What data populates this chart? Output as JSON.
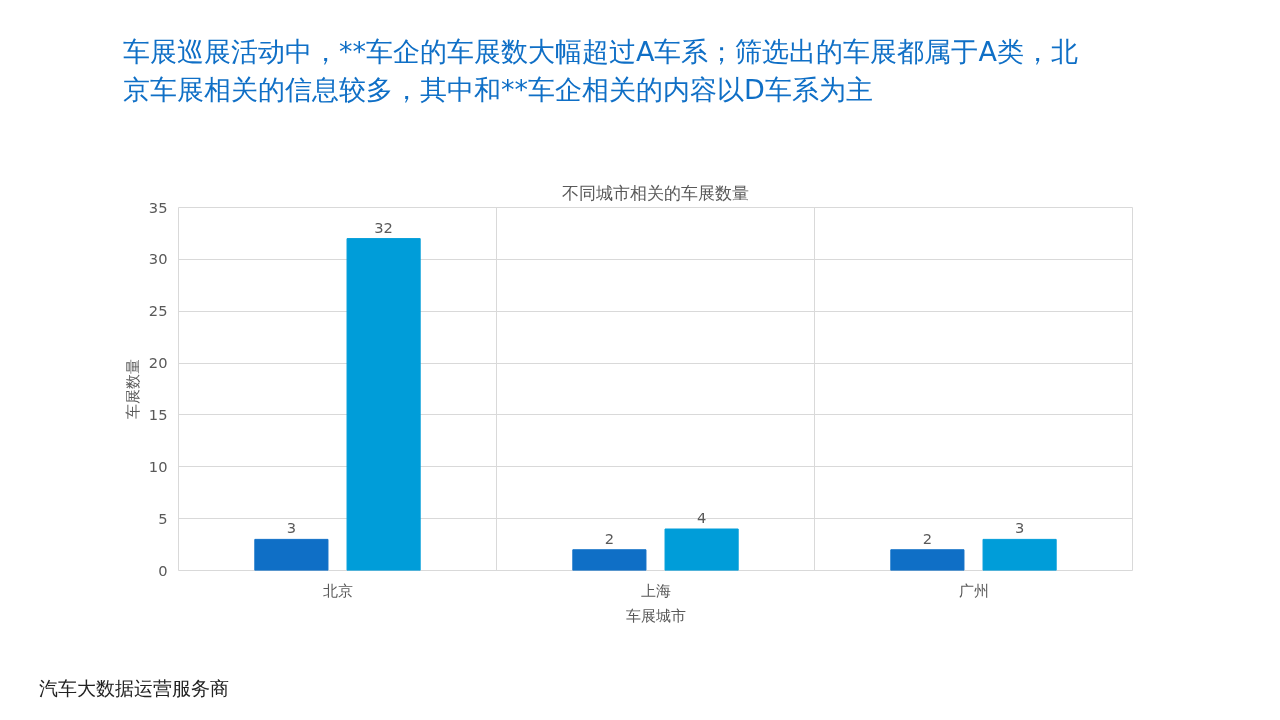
{
  "chart_data": {
    "type": "bar",
    "title": "车展巡展活动中，**车企的车展数大幅超过A车系；筛选出的车展都属于A类，北京车展相关的信息较多，其中和**车企相关的内容以D车系为主",
    "subtitle": "不同城市相关的车展数量",
    "xlabel": "车展城市",
    "ylabel": "车展数量",
    "categories": [
      "北京",
      "上海",
      "广州"
    ],
    "series": [
      {
        "color": "#0f6fc6",
        "values": [
          3,
          2,
          2
        ]
      },
      {
        "color": "#009dd9",
        "values": [
          32,
          4,
          3
        ]
      }
    ],
    "ylim": [
      0,
      35
    ],
    "yticks": [
      0,
      5,
      10,
      15,
      20,
      25,
      30,
      35
    ],
    "grid": true,
    "data_labels": true,
    "annotations": [
      "汽车大数据运营服务商"
    ]
  }
}
